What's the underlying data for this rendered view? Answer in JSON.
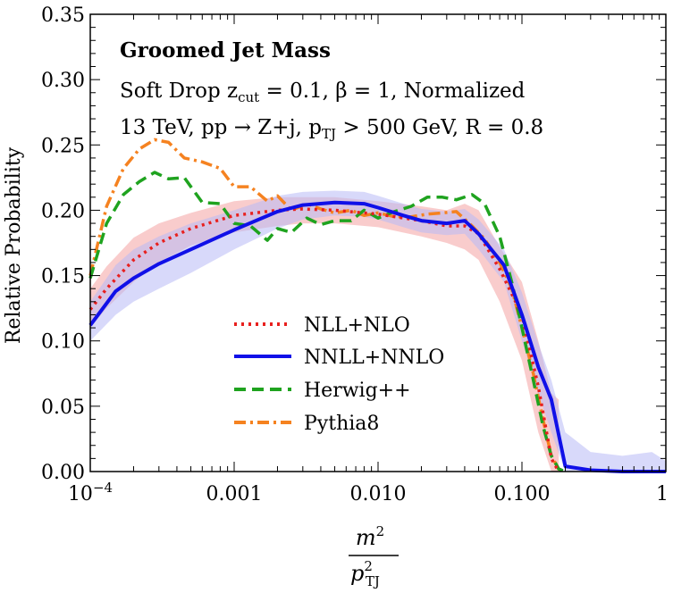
{
  "chart_data": {
    "type": "line",
    "title": "Groomed Jet Mass",
    "subtitle_lines": [
      {
        "prefix": "Soft Drop z",
        "sub": "cut",
        "suffix": " = 0.1, β = 1, Normalized"
      },
      {
        "prefix": "13 TeV, pp → Z+j, p",
        "sub": "TJ",
        "suffix": " > 500 GeV, R = 0.8"
      }
    ],
    "xlabel": {
      "numerator": "m",
      "numerator_sup": "2",
      "denominator": "p",
      "denominator_sup": "2",
      "denominator_sub": "TJ"
    },
    "ylabel": "Relative Probability",
    "xscale": "log",
    "xlim": [
      0.0001,
      1
    ],
    "ylim": [
      0,
      0.35
    ],
    "xticks": [
      {
        "value": 0.0001,
        "label": "10",
        "sup": "−4"
      },
      {
        "value": 0.001,
        "label": "0.001"
      },
      {
        "value": 0.01,
        "label": "0.010"
      },
      {
        "value": 0.1,
        "label": "0.100"
      },
      {
        "value": 1,
        "label": "1"
      }
    ],
    "yticks": [
      {
        "value": 0,
        "label": "0.00"
      },
      {
        "value": 0.05,
        "label": "0.05"
      },
      {
        "value": 0.1,
        "label": "0.10"
      },
      {
        "value": 0.15,
        "label": "0.15"
      },
      {
        "value": 0.2,
        "label": "0.20"
      },
      {
        "value": 0.25,
        "label": "0.25"
      },
      {
        "value": 0.3,
        "label": "0.30"
      },
      {
        "value": 0.35,
        "label": "0.35"
      }
    ],
    "legend_position": "center-left",
    "series": [
      {
        "name": "NLL+NLO",
        "color": "#e8201e",
        "dash": "dotted",
        "band_color": "#f4a3a3",
        "x": [
          0.0001,
          0.00013,
          0.0002,
          0.0003,
          0.0005,
          0.001,
          0.002,
          0.003,
          0.005,
          0.01,
          0.02,
          0.03,
          0.04,
          0.05,
          0.07,
          0.1,
          0.13,
          0.16,
          0.18
        ],
        "y": [
          0.124,
          0.14,
          0.162,
          0.175,
          0.186,
          0.196,
          0.2,
          0.201,
          0.2,
          0.197,
          0.192,
          0.188,
          0.188,
          0.182,
          0.155,
          0.12,
          0.065,
          0.01,
          0.0
        ],
        "band_low": [
          0.11,
          0.125,
          0.145,
          0.16,
          0.173,
          0.183,
          0.188,
          0.19,
          0.19,
          0.187,
          0.18,
          0.175,
          0.17,
          0.162,
          0.13,
          0.085,
          0.03,
          0.0,
          0.0
        ],
        "band_high": [
          0.14,
          0.157,
          0.179,
          0.19,
          0.198,
          0.207,
          0.21,
          0.21,
          0.21,
          0.207,
          0.203,
          0.2,
          0.205,
          0.2,
          0.172,
          0.145,
          0.1,
          0.06,
          0.055
        ]
      },
      {
        "name": "NNLL+NNLO",
        "color": "#1010e8",
        "dash": "solid",
        "band_color": "#b8baf5",
        "x": [
          0.0001,
          0.00015,
          0.0002,
          0.0003,
          0.0005,
          0.001,
          0.002,
          0.003,
          0.005,
          0.008,
          0.01,
          0.015,
          0.02,
          0.03,
          0.04,
          0.05,
          0.075,
          0.1,
          0.13,
          0.16,
          0.2,
          0.3,
          0.5,
          0.8,
          1.0
        ],
        "y": [
          0.112,
          0.138,
          0.148,
          0.159,
          0.17,
          0.185,
          0.199,
          0.204,
          0.206,
          0.205,
          0.202,
          0.196,
          0.192,
          0.19,
          0.192,
          0.182,
          0.158,
          0.12,
          0.08,
          0.055,
          0.004,
          0.001,
          0.0,
          0.0,
          0.0
        ],
        "band_low": [
          0.1,
          0.12,
          0.13,
          0.14,
          0.152,
          0.17,
          0.186,
          0.193,
          0.196,
          0.195,
          0.193,
          0.187,
          0.183,
          0.181,
          0.182,
          0.17,
          0.145,
          0.1,
          0.06,
          0.03,
          0.0,
          0.0,
          0.0,
          0.0,
          0.0
        ],
        "band_high": [
          0.13,
          0.158,
          0.17,
          0.18,
          0.19,
          0.2,
          0.211,
          0.214,
          0.215,
          0.214,
          0.211,
          0.205,
          0.201,
          0.199,
          0.201,
          0.193,
          0.17,
          0.137,
          0.098,
          0.07,
          0.03,
          0.015,
          0.012,
          0.015,
          0.008
        ]
      },
      {
        "name": "Herwig++",
        "color": "#1fa31f",
        "dash": "dashed",
        "x": [
          0.0001,
          0.00013,
          0.00017,
          0.00022,
          0.00028,
          0.00035,
          0.00045,
          0.0006,
          0.0008,
          0.001,
          0.0013,
          0.0017,
          0.002,
          0.0025,
          0.0032,
          0.004,
          0.005,
          0.0065,
          0.008,
          0.01,
          0.013,
          0.017,
          0.022,
          0.028,
          0.035,
          0.045,
          0.055,
          0.07,
          0.085,
          0.1,
          0.12,
          0.14,
          0.16,
          0.18,
          0.2
        ],
        "y": [
          0.148,
          0.19,
          0.212,
          0.222,
          0.229,
          0.224,
          0.225,
          0.206,
          0.205,
          0.19,
          0.188,
          0.177,
          0.186,
          0.183,
          0.194,
          0.189,
          0.192,
          0.192,
          0.2,
          0.194,
          0.199,
          0.203,
          0.21,
          0.21,
          0.208,
          0.212,
          0.205,
          0.18,
          0.145,
          0.11,
          0.07,
          0.035,
          0.012,
          0.002,
          0.0
        ]
      },
      {
        "name": "Pythia8",
        "color": "#f58220",
        "dash": "dashdot",
        "x": [
          0.0001,
          0.00013,
          0.00017,
          0.00022,
          0.00028,
          0.00035,
          0.00045,
          0.0006,
          0.0008,
          0.001,
          0.0013,
          0.0017,
          0.002,
          0.0025,
          0.0032,
          0.004,
          0.005,
          0.0065,
          0.008,
          0.01,
          0.013,
          0.017,
          0.022,
          0.028,
          0.035,
          0.045,
          0.055,
          0.07,
          0.085,
          0.1,
          0.12,
          0.14,
          0.16,
          0.18,
          0.2
        ],
        "y": [
          0.15,
          0.203,
          0.232,
          0.247,
          0.254,
          0.252,
          0.24,
          0.237,
          0.232,
          0.218,
          0.218,
          0.207,
          0.211,
          0.2,
          0.205,
          0.201,
          0.198,
          0.2,
          0.196,
          0.198,
          0.195,
          0.195,
          0.197,
          0.198,
          0.199,
          0.188,
          0.178,
          0.16,
          0.14,
          0.11,
          0.075,
          0.04,
          0.012,
          0.002,
          0.0
        ]
      }
    ]
  }
}
